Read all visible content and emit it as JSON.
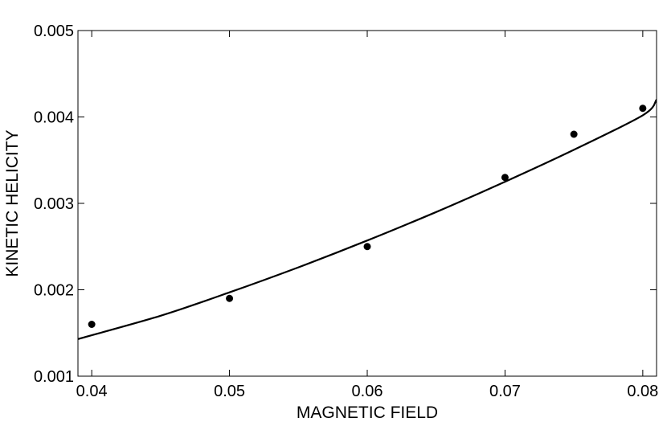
{
  "chart_data": {
    "type": "scatter",
    "title": "",
    "xlabel": "MAGNETIC FIELD",
    "ylabel": "KINETIC HELICITY",
    "xlim": [
      0.039,
      0.081
    ],
    "ylim": [
      0.001,
      0.005
    ],
    "grid": false,
    "x_ticks": [
      {
        "value": 0.04,
        "label": "0.04"
      },
      {
        "value": 0.05,
        "label": "0.05"
      },
      {
        "value": 0.06,
        "label": "0.06"
      },
      {
        "value": 0.07,
        "label": "0.07"
      },
      {
        "value": 0.08,
        "label": "0.08"
      }
    ],
    "y_ticks": [
      {
        "value": 0.001,
        "label": "0.001"
      },
      {
        "value": 0.002,
        "label": "0.002"
      },
      {
        "value": 0.003,
        "label": "0.003"
      },
      {
        "value": 0.004,
        "label": "0.004"
      },
      {
        "value": 0.005,
        "label": "0.005"
      }
    ],
    "series": [
      {
        "kind": "scatter",
        "marker": "filled-circle",
        "color": "#000000",
        "x": [
          0.04,
          0.05,
          0.06,
          0.07,
          0.075,
          0.08
        ],
        "y": [
          0.0016,
          0.0019,
          0.0025,
          0.0033,
          0.0038,
          0.0041
        ]
      },
      {
        "kind": "line",
        "color": "#000000",
        "x": [
          0.039,
          0.045,
          0.05,
          0.055,
          0.06,
          0.065,
          0.07,
          0.075,
          0.08,
          0.081
        ],
        "y": [
          0.00143,
          0.0017,
          0.00197,
          0.00226,
          0.00257,
          0.0029,
          0.00325,
          0.00362,
          0.00402,
          0.0042
        ]
      }
    ]
  }
}
